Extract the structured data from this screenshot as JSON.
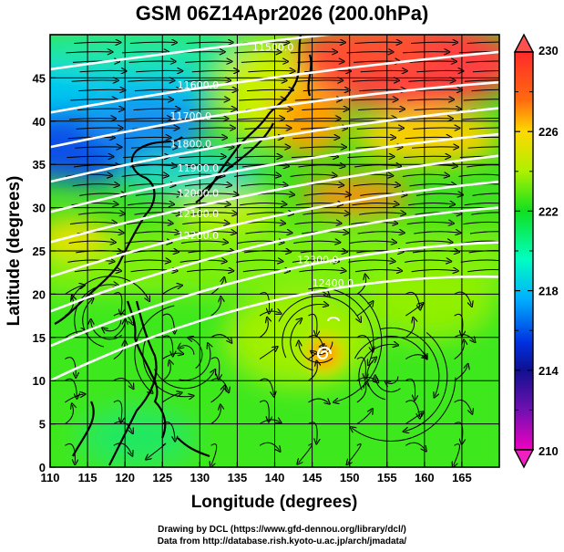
{
  "title": "GSM 06Z14Apr2026 (200.0hPa)",
  "map": {
    "lon_range": [
      110,
      170
    ],
    "lat_range": [
      0,
      50
    ],
    "x_ticks": [
      "110",
      "115",
      "120",
      "125",
      "130",
      "135",
      "140",
      "145",
      "150",
      "155",
      "160",
      "165"
    ],
    "y_ticks": [
      "0",
      "5",
      "10",
      "15",
      "20",
      "25",
      "30",
      "35",
      "40",
      "45"
    ],
    "xlabel": "Longitude (degrees)",
    "ylabel": "Latitude  (degrees)",
    "contour_labels": [
      "11500.0",
      "11600.0",
      "11700.0",
      "11800.0",
      "11900.0",
      "12000.0",
      "12100.0",
      "12200.0",
      "12300.0",
      "12400.0"
    ],
    "shaded_field_unit_range": [
      210,
      230
    ]
  },
  "colorbar": {
    "labels": [
      "230",
      "226",
      "222",
      "218",
      "214",
      "210"
    ],
    "colors": [
      "#ff3030",
      "#ff8000",
      "#ffe000",
      "#c0ff00",
      "#20e020",
      "#00ffb0",
      "#00e0ff",
      "#0070ff",
      "#0010d0",
      "#5010a0",
      "#e000c0"
    ]
  },
  "credits": {
    "line1": "Drawing by DCL (https://www.gfd-dennou.org/library/dcl/)",
    "line2": "Data from http://database.rish.kyoto-u.ac.jp/arch/jmadata/"
  }
}
